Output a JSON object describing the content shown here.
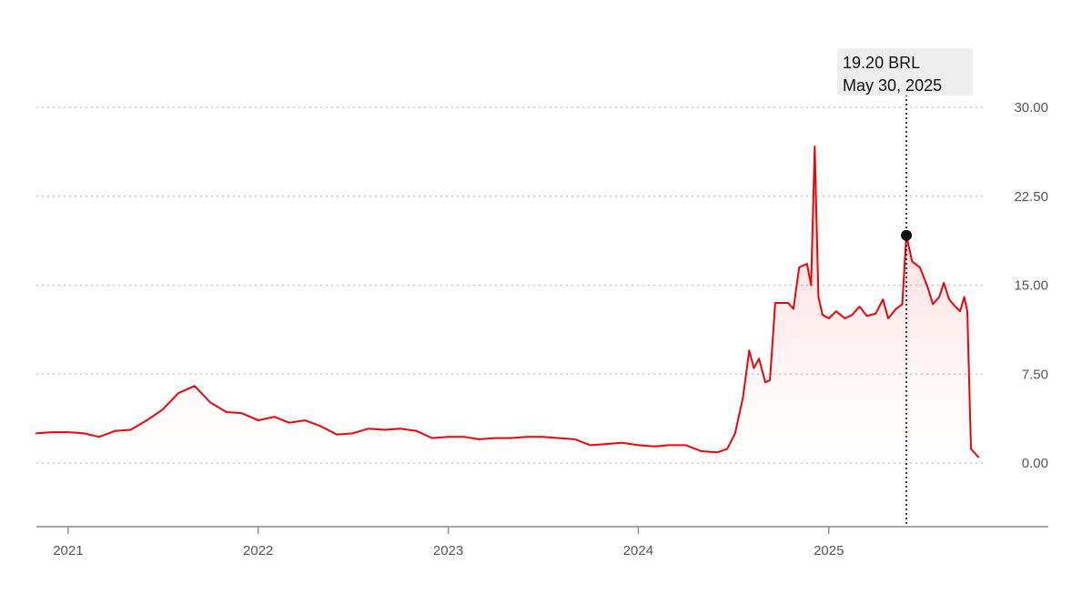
{
  "chart_data": {
    "type": "line",
    "unit": "BRL",
    "ylim": [
      -5,
      30
    ],
    "y_ticks": [
      {
        "value": 30,
        "label": "30.00"
      },
      {
        "value": 22.5,
        "label": "22.50"
      },
      {
        "value": 15,
        "label": "15.00"
      },
      {
        "value": 7.5,
        "label": "7.50"
      },
      {
        "value": 0,
        "label": "0.00"
      }
    ],
    "x_range": [
      "2020-11-01",
      "2025-10-15"
    ],
    "x_ticks": [
      {
        "date": "2021-01-01",
        "label": "2021"
      },
      {
        "date": "2022-01-01",
        "label": "2022"
      },
      {
        "date": "2023-01-01",
        "label": "2023"
      },
      {
        "date": "2024-01-01",
        "label": "2024"
      },
      {
        "date": "2025-01-01",
        "label": "2025"
      }
    ],
    "grid": true,
    "line_color": "#e8060b",
    "highlight": {
      "date": "2025-05-30",
      "value": 19.2,
      "value_label": "19.20 BRL",
      "date_label": "May 30, 2025"
    },
    "series": [
      {
        "points": [
          [
            "2020-11-01",
            2.5
          ],
          [
            "2020-12-01",
            2.6
          ],
          [
            "2021-01-01",
            2.6
          ],
          [
            "2021-02-01",
            2.5
          ],
          [
            "2021-03-01",
            2.2
          ],
          [
            "2021-04-01",
            2.7
          ],
          [
            "2021-05-01",
            2.8
          ],
          [
            "2021-06-01",
            3.6
          ],
          [
            "2021-07-01",
            4.5
          ],
          [
            "2021-08-01",
            5.9
          ],
          [
            "2021-09-01",
            6.5
          ],
          [
            "2021-10-01",
            5.1
          ],
          [
            "2021-11-01",
            4.3
          ],
          [
            "2021-12-01",
            4.2
          ],
          [
            "2022-01-01",
            3.6
          ],
          [
            "2022-02-01",
            3.9
          ],
          [
            "2022-03-01",
            3.4
          ],
          [
            "2022-04-01",
            3.6
          ],
          [
            "2022-05-01",
            3.1
          ],
          [
            "2022-06-01",
            2.4
          ],
          [
            "2022-07-01",
            2.5
          ],
          [
            "2022-08-01",
            2.9
          ],
          [
            "2022-09-01",
            2.8
          ],
          [
            "2022-10-01",
            2.9
          ],
          [
            "2022-11-01",
            2.7
          ],
          [
            "2022-12-01",
            2.1
          ],
          [
            "2023-01-01",
            2.2
          ],
          [
            "2023-02-01",
            2.2
          ],
          [
            "2023-03-01",
            2.0
          ],
          [
            "2023-04-01",
            2.1
          ],
          [
            "2023-05-01",
            2.1
          ],
          [
            "2023-06-01",
            2.2
          ],
          [
            "2023-07-01",
            2.2
          ],
          [
            "2023-08-01",
            2.1
          ],
          [
            "2023-09-01",
            2.0
          ],
          [
            "2023-10-01",
            1.5
          ],
          [
            "2023-11-01",
            1.6
          ],
          [
            "2023-12-01",
            1.7
          ],
          [
            "2024-01-01",
            1.5
          ],
          [
            "2024-02-01",
            1.4
          ],
          [
            "2024-03-01",
            1.5
          ],
          [
            "2024-04-01",
            1.5
          ],
          [
            "2024-05-01",
            1.0
          ],
          [
            "2024-06-01",
            0.9
          ],
          [
            "2024-06-20",
            1.2
          ],
          [
            "2024-07-05",
            2.5
          ],
          [
            "2024-07-20",
            5.5
          ],
          [
            "2024-08-01",
            9.5
          ],
          [
            "2024-08-10",
            8.0
          ],
          [
            "2024-08-20",
            8.8
          ],
          [
            "2024-09-01",
            6.8
          ],
          [
            "2024-09-10",
            7.0
          ],
          [
            "2024-09-20",
            13.5
          ],
          [
            "2024-10-15",
            13.5
          ],
          [
            "2024-10-25",
            13.0
          ],
          [
            "2024-11-05",
            16.5
          ],
          [
            "2024-11-20",
            16.8
          ],
          [
            "2024-11-28",
            15.0
          ],
          [
            "2024-12-05",
            26.7
          ],
          [
            "2024-12-12",
            14.0
          ],
          [
            "2024-12-20",
            12.5
          ],
          [
            "2025-01-01",
            12.2
          ],
          [
            "2025-01-15",
            12.8
          ],
          [
            "2025-02-01",
            12.2
          ],
          [
            "2025-02-15",
            12.5
          ],
          [
            "2025-03-01",
            13.2
          ],
          [
            "2025-03-15",
            12.4
          ],
          [
            "2025-04-01",
            12.6
          ],
          [
            "2025-04-15",
            13.8
          ],
          [
            "2025-04-25",
            12.2
          ],
          [
            "2025-05-10",
            13.0
          ],
          [
            "2025-05-22",
            13.4
          ],
          [
            "2025-05-30",
            19.2
          ],
          [
            "2025-06-10",
            17.0
          ],
          [
            "2025-06-25",
            16.5
          ],
          [
            "2025-07-10",
            14.8
          ],
          [
            "2025-07-20",
            13.4
          ],
          [
            "2025-08-01",
            14.0
          ],
          [
            "2025-08-10",
            15.2
          ],
          [
            "2025-08-20",
            13.8
          ],
          [
            "2025-09-01",
            13.2
          ],
          [
            "2025-09-10",
            12.8
          ],
          [
            "2025-09-18",
            14.0
          ],
          [
            "2025-09-24",
            12.8
          ],
          [
            "2025-10-01",
            1.2
          ],
          [
            "2025-10-15",
            0.5
          ]
        ]
      }
    ]
  }
}
